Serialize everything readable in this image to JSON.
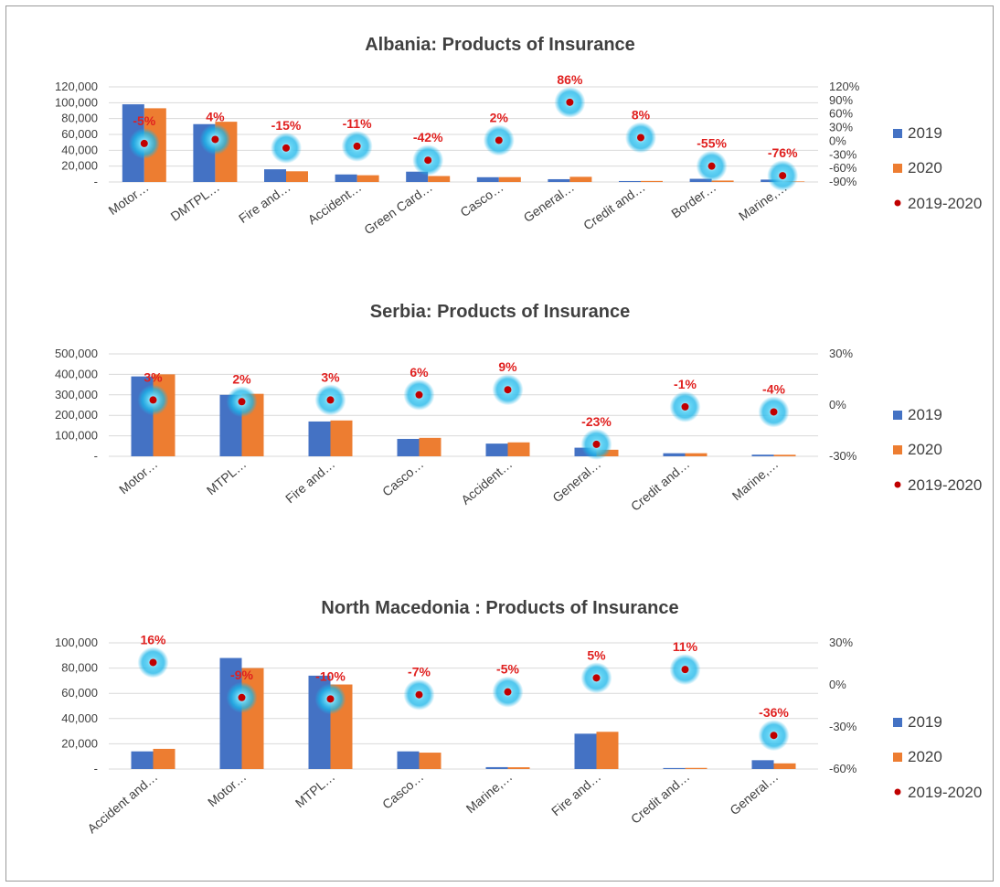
{
  "chart_data": [
    {
      "type": "bar",
      "title": "Albania: Products  of Insurance",
      "categories": [
        "Motor…",
        "DMTPL…",
        "Fire and…",
        "Accident…",
        "Green Card…",
        "Casco…",
        "General…",
        "Credit and…",
        "Border…",
        "Marine,…"
      ],
      "series": [
        {
          "name": "2019",
          "color": "#4472c4",
          "values": [
            98000,
            73000,
            16000,
            9500,
            13000,
            6000,
            3500,
            1200,
            4000,
            3000
          ]
        },
        {
          "name": "2020",
          "color": "#ed7d31",
          "values": [
            93000,
            76000,
            13500,
            8500,
            7500,
            6100,
            6500,
            1300,
            1800,
            700
          ]
        }
      ],
      "change_series": {
        "name": "2019-2020",
        "values": [
          -0.05,
          0.04,
          -0.15,
          -0.11,
          -0.42,
          0.02,
          0.86,
          0.08,
          -0.55,
          -0.76
        ],
        "labels": [
          "-5%",
          "4%",
          "-15%",
          "-11%",
          "-42%",
          "2%",
          "86%",
          "8%",
          "-55%",
          "-76%"
        ]
      },
      "ylim": [
        0,
        120000
      ],
      "y_ticks": [
        0,
        20000,
        40000,
        60000,
        80000,
        100000,
        120000
      ],
      "y_tick_labels": [
        "-",
        "20,000",
        "40,000",
        "60,000",
        "80,000",
        "100,000",
        "120,000"
      ],
      "y2lim": [
        -0.9,
        1.2
      ],
      "y2_ticks": [
        -0.9,
        -0.6,
        -0.3,
        0,
        0.3,
        0.6,
        0.9,
        1.2
      ],
      "y2_tick_labels": [
        "-90%",
        "-60%",
        "-30%",
        "0%",
        "30%",
        "60%",
        "90%",
        "120%"
      ],
      "legend": [
        "2019",
        "2020",
        "2019-2020"
      ],
      "legend_position": "right",
      "grid": true
    },
    {
      "type": "bar",
      "title": "Serbia: Products  of Insurance",
      "categories": [
        "Motor…",
        "MTPL…",
        "Fire and…",
        "Casco…",
        "Accident…",
        "General…",
        "Credit and…",
        "Marine,…"
      ],
      "series": [
        {
          "name": "2019",
          "color": "#4472c4",
          "values": [
            390000,
            300000,
            170000,
            85000,
            62000,
            42000,
            15000,
            8000
          ]
        },
        {
          "name": "2020",
          "color": "#ed7d31",
          "values": [
            400000,
            305000,
            175000,
            90000,
            68000,
            32000,
            15000,
            7500
          ]
        }
      ],
      "change_series": {
        "name": "2019-2020",
        "values": [
          0.03,
          0.02,
          0.03,
          0.06,
          0.09,
          -0.23,
          -0.01,
          -0.04
        ],
        "labels": [
          "3%",
          "2%",
          "3%",
          "6%",
          "9%",
          "-23%",
          "-1%",
          "-4%"
        ]
      },
      "ylim": [
        0,
        500000
      ],
      "y_ticks": [
        0,
        100000,
        200000,
        300000,
        400000,
        500000
      ],
      "y_tick_labels": [
        "-",
        "100,000",
        "200,000",
        "300,000",
        "400,000",
        "500,000"
      ],
      "y2lim": [
        -0.3,
        0.3
      ],
      "y2_ticks": [
        -0.3,
        0,
        0.3
      ],
      "y2_tick_labels": [
        "-30%",
        "0%",
        "30%"
      ],
      "legend": [
        "2019",
        "2020",
        "2019-2020"
      ],
      "legend_position": "right",
      "grid": true
    },
    {
      "type": "bar",
      "title": "North Macedonia : Products  of Insurance",
      "categories": [
        "Accident and…",
        "Motor…",
        "MTPL…",
        "Casco…",
        "Marine,…",
        "Fire and…",
        "Credit and…",
        "General…"
      ],
      "series": [
        {
          "name": "2019",
          "color": "#4472c4",
          "values": [
            14000,
            88000,
            74000,
            14000,
            1500,
            28000,
            800,
            7000
          ]
        },
        {
          "name": "2020",
          "color": "#ed7d31",
          "values": [
            16000,
            80000,
            67000,
            13000,
            1400,
            29500,
            900,
            4500
          ]
        }
      ],
      "change_series": {
        "name": "2019-2020",
        "values": [
          0.16,
          -0.09,
          -0.1,
          -0.07,
          -0.05,
          0.05,
          0.11,
          -0.36
        ],
        "labels": [
          "16%",
          "-9%",
          "-10%",
          "-7%",
          "-5%",
          "5%",
          "11%",
          "-36%"
        ]
      },
      "ylim": [
        0,
        100000
      ],
      "y_ticks": [
        0,
        20000,
        40000,
        60000,
        80000,
        100000
      ],
      "y_tick_labels": [
        "-",
        "20,000",
        "40,000",
        "60,000",
        "80,000",
        "100,000"
      ],
      "y2lim": [
        -0.6,
        0.3
      ],
      "y2_ticks": [
        -0.6,
        -0.3,
        0,
        0.3
      ],
      "y2_tick_labels": [
        "-60%",
        "-30%",
        "0%",
        "30%"
      ],
      "legend": [
        "2019",
        "2020",
        "2019-2020"
      ],
      "legend_position": "right",
      "grid": true
    }
  ]
}
